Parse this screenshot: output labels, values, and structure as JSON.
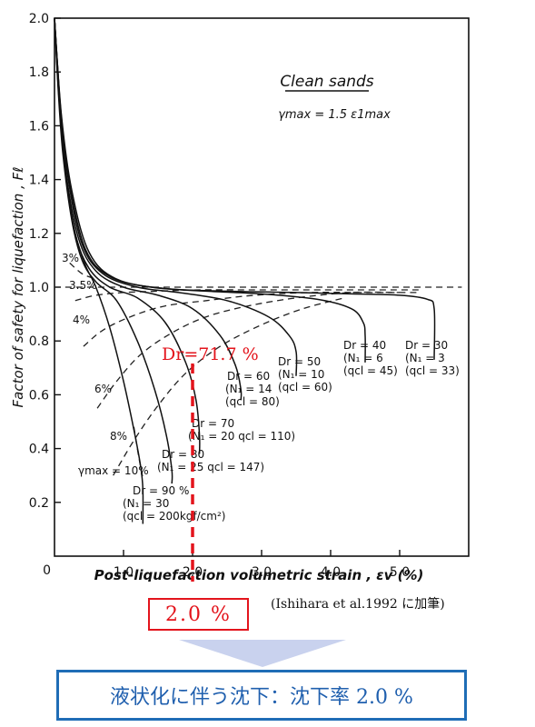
{
  "chart_data": {
    "type": "line",
    "title": "Clean sands",
    "subtitle": "γmax = 1.5 ε1max",
    "xlabel": "Post-liquefaction volumetric strain , εv (%)",
    "ylabel": "Factor of safety for liquefaction , Fℓ",
    "xlim": [
      0,
      6.0
    ],
    "ylim": [
      0,
      2.0
    ],
    "xticks": [
      "1.0",
      "2.0",
      "3.0",
      "4.0",
      "5.0"
    ],
    "xtick_values": [
      1.0,
      2.0,
      3.0,
      4.0,
      5.0
    ],
    "origin_label": "0",
    "yticks": [
      "0.2",
      "0.4",
      "0.6",
      "0.8",
      "1.0",
      "1.2",
      "1.4",
      "1.6",
      "1.8",
      "2.0"
    ],
    "ytick_values": [
      0.2,
      0.4,
      0.6,
      0.8,
      1.0,
      1.2,
      1.4,
      1.6,
      1.8,
      2.0
    ],
    "grid": false,
    "density_curves": [
      {
        "name": "Dr=90%",
        "x": [
          0.0,
          0.05,
          0.1,
          0.2,
          0.3,
          0.45,
          0.6,
          0.8,
          1.0,
          1.15,
          1.25,
          1.28,
          1.28
        ],
        "y": [
          2.0,
          1.8,
          1.6,
          1.35,
          1.2,
          1.08,
          1.0,
          0.85,
          0.65,
          0.47,
          0.33,
          0.25,
          0.12
        ]
      },
      {
        "name": "Dr=80",
        "x": [
          0.0,
          0.05,
          0.12,
          0.25,
          0.4,
          0.6,
          0.9,
          1.2,
          1.45,
          1.62,
          1.7,
          1.7
        ],
        "y": [
          2.0,
          1.75,
          1.5,
          1.25,
          1.1,
          1.02,
          0.95,
          0.8,
          0.62,
          0.45,
          0.32,
          0.27
        ]
      },
      {
        "name": "Dr=70",
        "x": [
          0.0,
          0.06,
          0.15,
          0.3,
          0.5,
          0.8,
          1.2,
          1.6,
          1.9,
          2.05,
          2.1,
          2.1
        ],
        "y": [
          2.0,
          1.72,
          1.45,
          1.2,
          1.07,
          1.0,
          0.96,
          0.87,
          0.72,
          0.58,
          0.45,
          0.38
        ]
      },
      {
        "name": "Dr=60",
        "x": [
          0.0,
          0.07,
          0.17,
          0.35,
          0.6,
          1.0,
          1.5,
          2.0,
          2.4,
          2.62,
          2.7,
          2.7
        ],
        "y": [
          2.0,
          1.7,
          1.42,
          1.18,
          1.06,
          1.0,
          0.97,
          0.92,
          0.82,
          0.71,
          0.62,
          0.58
        ]
      },
      {
        "name": "Dr=50",
        "x": [
          0.0,
          0.08,
          0.2,
          0.4,
          0.7,
          1.2,
          1.8,
          2.5,
          3.1,
          3.4,
          3.5,
          3.5
        ],
        "y": [
          2.0,
          1.68,
          1.4,
          1.16,
          1.05,
          1.0,
          0.98,
          0.95,
          0.89,
          0.82,
          0.76,
          0.67
        ]
      },
      {
        "name": "Dr=40",
        "x": [
          0.0,
          0.09,
          0.22,
          0.45,
          0.8,
          1.4,
          2.2,
          3.0,
          3.8,
          4.3,
          4.47,
          4.5,
          4.5
        ],
        "y": [
          2.0,
          1.66,
          1.38,
          1.14,
          1.04,
          1.0,
          0.985,
          0.975,
          0.955,
          0.92,
          0.87,
          0.82,
          0.72
        ]
      },
      {
        "name": "Dr=30",
        "x": [
          0.0,
          0.1,
          0.25,
          0.5,
          0.9,
          1.6,
          2.5,
          3.5,
          4.3,
          5.0,
          5.4,
          5.5,
          5.5
        ],
        "y": [
          2.0,
          1.64,
          1.36,
          1.13,
          1.03,
          0.995,
          0.985,
          0.98,
          0.975,
          0.97,
          0.955,
          0.92,
          0.73
        ]
      }
    ],
    "strain_curves": [
      {
        "name": "γmax=10%",
        "x": [
          1.15,
          1.22,
          1.28
        ],
        "y": [
          0.48,
          0.37,
          0.29
        ]
      },
      {
        "name": "8%",
        "x": [
          0.85,
          1.15,
          1.5,
          1.9,
          2.4,
          3.0,
          3.6,
          4.2
        ],
        "y": [
          0.3,
          0.43,
          0.56,
          0.68,
          0.78,
          0.86,
          0.92,
          0.96
        ]
      },
      {
        "name": "6%",
        "x": [
          0.62,
          0.9,
          1.25,
          1.7,
          2.2,
          2.8,
          3.5,
          4.3,
          5.0
        ],
        "y": [
          0.55,
          0.65,
          0.75,
          0.83,
          0.89,
          0.93,
          0.96,
          0.98,
          0.98
        ]
      },
      {
        "name": "4%",
        "x": [
          0.42,
          0.7,
          1.1,
          1.6,
          2.2,
          2.9,
          3.7,
          4.6,
          5.3
        ],
        "y": [
          0.78,
          0.84,
          0.89,
          0.93,
          0.95,
          0.97,
          0.98,
          0.98,
          0.98
        ]
      },
      {
        "name": "3.5%",
        "x": [
          0.3,
          0.6,
          1.0,
          1.5,
          2.1,
          2.8,
          3.6,
          4.5,
          5.3
        ],
        "y": [
          0.95,
          0.97,
          0.98,
          0.985,
          0.99,
          0.99,
          0.99,
          0.99,
          0.99
        ]
      },
      {
        "name": "3%",
        "x": [
          0.22,
          0.4,
          0.6
        ],
        "y": [
          1.09,
          1.05,
          1.03
        ]
      }
    ],
    "reference_line": {
      "name": "Fℓ = 1.0",
      "x": [
        0.0,
        5.9
      ],
      "y": [
        1.0,
        1.0
      ]
    },
    "red_marker": {
      "x": 2.0,
      "label": "Dr=71.7 %"
    }
  },
  "labels": {
    "dr30": [
      "Dr = 30",
      "(N₁ = 3",
      "(qcl = 33)"
    ],
    "dr40": [
      "Dr = 40",
      "(N₁ = 6",
      "(qcl = 45)"
    ],
    "dr50": [
      "Dr = 50",
      "(N₁ = 10",
      "(qcl = 60)"
    ],
    "dr60": [
      "Dr = 60",
      "(N₁ = 14",
      "(qcl = 80)"
    ],
    "dr70": [
      "Dr = 70",
      "(N₁ = 20  qcl = 110)"
    ],
    "dr80": [
      "Dr = 80",
      "(N₁ = 25  qcl = 147)"
    ],
    "dr90": [
      "Dr = 90 %",
      "(N₁ = 30",
      "(qcl = 200kgf/cm²)"
    ],
    "s3": "3%",
    "s35": "3.5%",
    "s4": "4%",
    "s6": "6%",
    "s8": "8%",
    "s10": "γmax = 10%"
  },
  "annotations": {
    "dr_red": "Dr=71.7 %",
    "result": "2.0 %",
    "note": "(Ishihara et al.1992 に加筆)",
    "conclusion": "液状化に伴う沈下：沈下率 2.0 %"
  },
  "colors": {
    "red": "#e3141c",
    "blue_border": "#1f6db6",
    "arrow_fill": "#c9d2ee"
  }
}
